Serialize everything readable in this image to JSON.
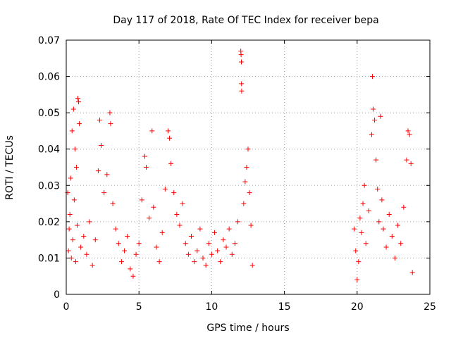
{
  "chart_data": {
    "type": "scatter",
    "title": "Day 117 of 2018, Rate Of TEC Index for receiver bepa",
    "xlabel": "GPS time / hours",
    "ylabel": "ROTI / TECUs",
    "xlim": [
      0,
      25
    ],
    "ylim": [
      0,
      0.07
    ],
    "xticks": [
      0,
      5,
      10,
      15,
      20,
      25
    ],
    "xtick_labels": [
      "0",
      "5",
      "10",
      "15",
      "20",
      "25"
    ],
    "yticks": [
      0,
      0.01,
      0.02,
      0.03,
      0.04,
      0.05,
      0.06,
      0.07
    ],
    "ytick_labels": [
      "0",
      "0.01",
      "0.02",
      "0.03",
      "0.04",
      "0.05",
      "0.06",
      "0.07"
    ],
    "grid": true,
    "marker": "+",
    "color": "#ff0000",
    "series": [
      {
        "name": "ROTI",
        "points": [
          [
            0.1,
            0.028
          ],
          [
            0.2,
            0.018
          ],
          [
            0.3,
            0.032
          ],
          [
            0.4,
            0.045
          ],
          [
            0.5,
            0.051
          ],
          [
            0.6,
            0.04
          ],
          [
            0.7,
            0.035
          ],
          [
            0.8,
            0.054
          ],
          [
            0.85,
            0.053
          ],
          [
            0.9,
            0.047
          ],
          [
            0.15,
            0.012
          ],
          [
            0.25,
            0.022
          ],
          [
            0.35,
            0.01
          ],
          [
            0.45,
            0.015
          ],
          [
            0.55,
            0.026
          ],
          [
            0.65,
            0.009
          ],
          [
            0.75,
            0.019
          ],
          [
            1.0,
            0.013
          ],
          [
            1.2,
            0.016
          ],
          [
            1.4,
            0.011
          ],
          [
            1.6,
            0.02
          ],
          [
            1.8,
            0.008
          ],
          [
            2.0,
            0.015
          ],
          [
            2.2,
            0.034
          ],
          [
            2.3,
            0.048
          ],
          [
            2.4,
            0.041
          ],
          [
            2.6,
            0.028
          ],
          [
            2.8,
            0.033
          ],
          [
            3.0,
            0.05
          ],
          [
            3.05,
            0.047
          ],
          [
            3.2,
            0.025
          ],
          [
            3.4,
            0.018
          ],
          [
            3.6,
            0.014
          ],
          [
            3.8,
            0.009
          ],
          [
            4.0,
            0.012
          ],
          [
            4.2,
            0.016
          ],
          [
            4.4,
            0.007
          ],
          [
            4.6,
            0.005
          ],
          [
            4.8,
            0.011
          ],
          [
            5.0,
            0.014
          ],
          [
            5.2,
            0.026
          ],
          [
            5.4,
            0.038
          ],
          [
            5.5,
            0.035
          ],
          [
            5.7,
            0.021
          ],
          [
            5.9,
            0.045
          ],
          [
            6.0,
            0.024
          ],
          [
            6.2,
            0.013
          ],
          [
            6.4,
            0.009
          ],
          [
            6.6,
            0.017
          ],
          [
            6.8,
            0.029
          ],
          [
            7.0,
            0.045
          ],
          [
            7.1,
            0.043
          ],
          [
            7.2,
            0.036
          ],
          [
            7.4,
            0.028
          ],
          [
            7.6,
            0.022
          ],
          [
            7.8,
            0.019
          ],
          [
            8.0,
            0.025
          ],
          [
            8.2,
            0.014
          ],
          [
            8.4,
            0.011
          ],
          [
            8.6,
            0.016
          ],
          [
            8.8,
            0.009
          ],
          [
            9.0,
            0.012
          ],
          [
            9.2,
            0.018
          ],
          [
            9.4,
            0.01
          ],
          [
            9.6,
            0.008
          ],
          [
            9.8,
            0.014
          ],
          [
            10.0,
            0.011
          ],
          [
            10.2,
            0.017
          ],
          [
            10.4,
            0.012
          ],
          [
            10.6,
            0.009
          ],
          [
            10.8,
            0.015
          ],
          [
            11.0,
            0.013
          ],
          [
            11.2,
            0.018
          ],
          [
            11.4,
            0.011
          ],
          [
            11.6,
            0.014
          ],
          [
            11.8,
            0.02
          ],
          [
            12.0,
            0.067
          ],
          [
            12.02,
            0.066
          ],
          [
            12.04,
            0.064
          ],
          [
            12.05,
            0.058
          ],
          [
            12.06,
            0.056
          ],
          [
            12.2,
            0.025
          ],
          [
            12.3,
            0.031
          ],
          [
            12.4,
            0.035
          ],
          [
            12.5,
            0.04
          ],
          [
            12.6,
            0.028
          ],
          [
            12.7,
            0.019
          ],
          [
            12.8,
            0.008
          ],
          [
            19.8,
            0.018
          ],
          [
            19.9,
            0.012
          ],
          [
            20.0,
            0.004
          ],
          [
            20.1,
            0.009
          ],
          [
            20.2,
            0.021
          ],
          [
            20.3,
            0.017
          ],
          [
            20.4,
            0.025
          ],
          [
            20.5,
            0.03
          ],
          [
            20.6,
            0.014
          ],
          [
            20.8,
            0.023
          ],
          [
            21.0,
            0.044
          ],
          [
            21.05,
            0.06
          ],
          [
            21.1,
            0.051
          ],
          [
            21.2,
            0.048
          ],
          [
            21.3,
            0.037
          ],
          [
            21.4,
            0.029
          ],
          [
            21.5,
            0.02
          ],
          [
            21.6,
            0.049
          ],
          [
            21.7,
            0.026
          ],
          [
            21.8,
            0.018
          ],
          [
            22.0,
            0.013
          ],
          [
            22.2,
            0.022
          ],
          [
            22.4,
            0.016
          ],
          [
            22.6,
            0.01
          ],
          [
            22.8,
            0.019
          ],
          [
            23.0,
            0.014
          ],
          [
            23.2,
            0.024
          ],
          [
            23.4,
            0.037
          ],
          [
            23.5,
            0.045
          ],
          [
            23.6,
            0.044
          ],
          [
            23.7,
            0.036
          ],
          [
            23.8,
            0.006
          ]
        ]
      }
    ]
  }
}
